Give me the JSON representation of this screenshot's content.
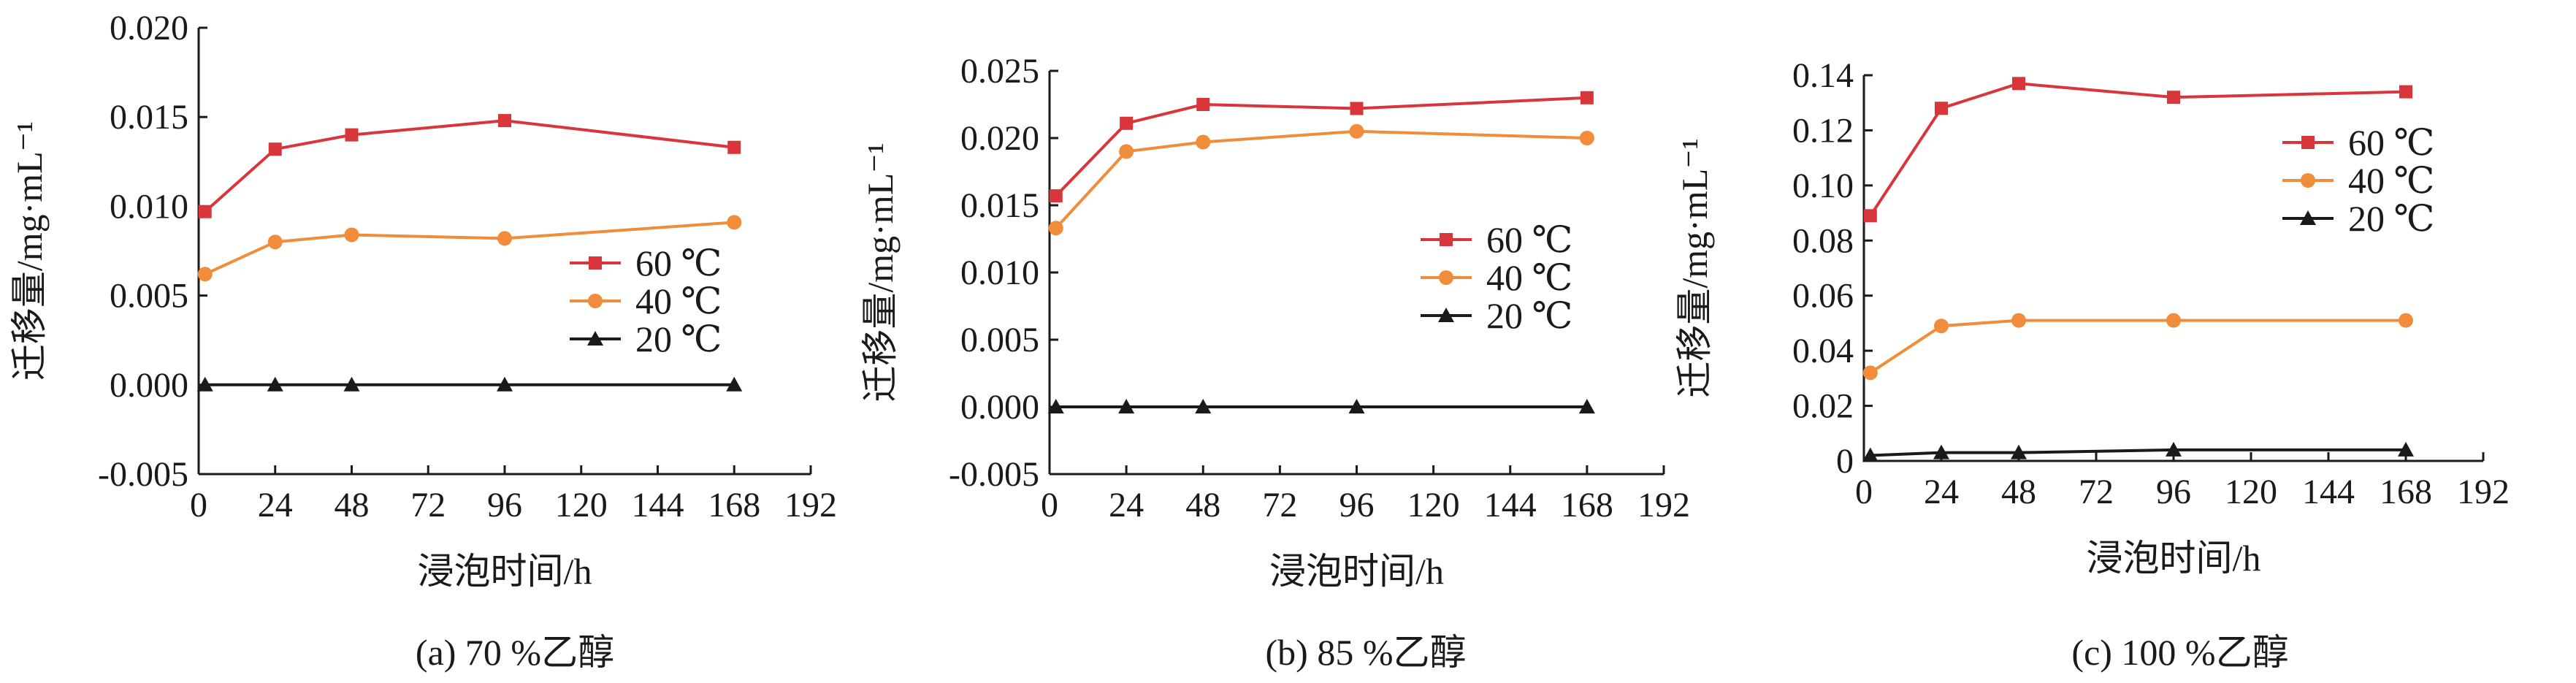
{
  "chart_data": [
    {
      "type": "line",
      "caption": "(a) 70 %乙醇",
      "xlabel": "浸泡时间/h",
      "ylabel": "迁移量/mg·mL⁻¹",
      "xlim": [
        0,
        192
      ],
      "xticks": [
        0,
        24,
        48,
        72,
        96,
        120,
        144,
        168,
        192
      ],
      "ylim": [
        -0.005,
        0.02
      ],
      "yticks": [
        "-0.005",
        "0.000",
        "0.005",
        "0.010",
        "0.015",
        "0.020"
      ],
      "legend_position": "center-right",
      "grid": false,
      "series": [
        {
          "name": "60 ℃",
          "marker": "square",
          "color": "#d8363a",
          "x": [
            2,
            24,
            48,
            96,
            168
          ],
          "y": [
            0.0097,
            0.0132,
            0.014,
            0.0148,
            0.0133
          ]
        },
        {
          "name": "40 ℃",
          "marker": "circle",
          "color": "#f08c3a",
          "x": [
            2,
            24,
            48,
            96,
            168
          ],
          "y": [
            0.0062,
            0.008,
            0.0084,
            0.0082,
            0.0091
          ]
        },
        {
          "name": "20 ℃",
          "marker": "triangle",
          "color": "#1a1a1a",
          "x": [
            2,
            24,
            48,
            96,
            168
          ],
          "y": [
            0.0,
            0.0,
            0.0,
            0.0,
            0.0
          ]
        }
      ]
    },
    {
      "type": "line",
      "caption": "(b) 85 %乙醇",
      "xlabel": "浸泡时间/h",
      "ylabel": "迁移量/mg·mL⁻¹",
      "xlim": [
        0,
        192
      ],
      "xticks": [
        0,
        24,
        48,
        72,
        96,
        120,
        144,
        168,
        192
      ],
      "ylim": [
        -0.005,
        0.025
      ],
      "yticks": [
        "-0.005",
        "0.000",
        "0.005",
        "0.010",
        "0.015",
        "0.020",
        "0.025"
      ],
      "legend_position": "center-right",
      "grid": false,
      "series": [
        {
          "name": "60 ℃",
          "marker": "square",
          "color": "#d8363a",
          "x": [
            2,
            24,
            48,
            96,
            168
          ],
          "y": [
            0.0157,
            0.0211,
            0.0225,
            0.0222,
            0.023
          ]
        },
        {
          "name": "40 ℃",
          "marker": "circle",
          "color": "#f08c3a",
          "x": [
            2,
            24,
            48,
            96,
            168
          ],
          "y": [
            0.0133,
            0.019,
            0.0197,
            0.0205,
            0.02
          ]
        },
        {
          "name": "20 ℃",
          "marker": "triangle",
          "color": "#1a1a1a",
          "x": [
            2,
            24,
            48,
            96,
            168
          ],
          "y": [
            0.0,
            0.0,
            0.0,
            0.0,
            0.0
          ]
        }
      ]
    },
    {
      "type": "line",
      "caption": "(c) 100 %乙醇",
      "xlabel": "浸泡时间/h",
      "ylabel": "迁移量/mg·mL⁻¹",
      "xlim": [
        0,
        192
      ],
      "xticks": [
        0,
        24,
        48,
        72,
        96,
        120,
        144,
        168,
        192
      ],
      "ylim": [
        0,
        0.14
      ],
      "yticks": [
        "0",
        "0.02",
        "0.04",
        "0.06",
        "0.08",
        "0.10",
        "0.12",
        "0.14"
      ],
      "legend_position": "center-right",
      "grid": false,
      "series": [
        {
          "name": "60 ℃",
          "marker": "square",
          "color": "#d8363a",
          "x": [
            2,
            24,
            48,
            96,
            168
          ],
          "y": [
            0.089,
            0.128,
            0.137,
            0.132,
            0.134
          ]
        },
        {
          "name": "40 ℃",
          "marker": "circle",
          "color": "#f08c3a",
          "x": [
            2,
            24,
            48,
            96,
            168
          ],
          "y": [
            0.032,
            0.049,
            0.051,
            0.051,
            0.051
          ]
        },
        {
          "name": "20 ℃",
          "marker": "triangle",
          "color": "#1a1a1a",
          "x": [
            2,
            24,
            48,
            96,
            168
          ],
          "y": [
            0.002,
            0.003,
            0.003,
            0.004,
            0.004
          ]
        }
      ]
    }
  ]
}
